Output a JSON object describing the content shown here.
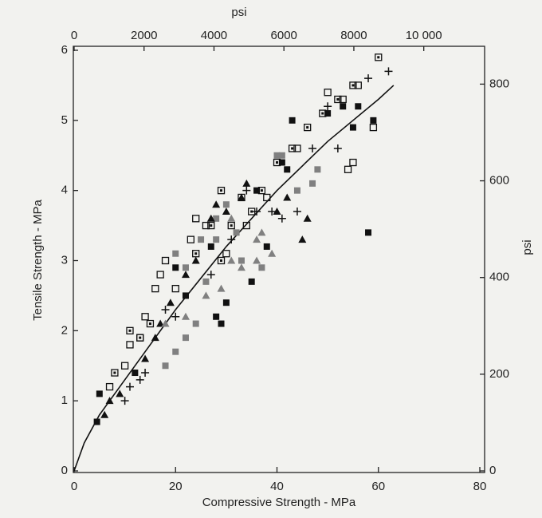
{
  "chart_data": {
    "type": "scatter",
    "xlabel": "Compressive Strength - MPa",
    "ylabel": "Tensile Strength - MPa",
    "x2label": "psi",
    "y2label": "psi",
    "xlim": [
      0,
      80
    ],
    "xticks": [
      0,
      20,
      40,
      60,
      80
    ],
    "ylim": [
      0,
      6
    ],
    "yticks": [
      0,
      1,
      2,
      3,
      4,
      5,
      6
    ],
    "x2lim": [
      0,
      11603
    ],
    "x2ticks": [
      0,
      2000,
      4000,
      6000,
      8000,
      {
        "value": 10000,
        "label": "10 000"
      }
    ],
    "y2lim": [
      0,
      870
    ],
    "y2ticks": [
      0,
      200,
      400,
      600,
      800
    ],
    "series": [
      {
        "marker": "line",
        "color": "#111111",
        "x": [
          0,
          2,
          5,
          10,
          20,
          30,
          40,
          50,
          60,
          63
        ],
        "values": [
          0,
          0.4,
          0.8,
          1.3,
          2.3,
          3.2,
          4.0,
          4.7,
          5.3,
          5.5
        ]
      },
      {
        "marker": "square",
        "color": "#111111",
        "x": [
          4.5,
          5,
          20,
          22,
          27,
          28,
          30,
          29,
          35,
          36,
          38,
          42,
          41,
          50,
          53,
          55,
          56,
          58,
          59,
          43,
          12
        ],
        "values": [
          0.7,
          1.1,
          2.9,
          2.5,
          3.2,
          2.2,
          2.4,
          2.1,
          2.7,
          4.0,
          3.2,
          4.3,
          4.4,
          5.1,
          5.2,
          4.9,
          5.2,
          3.4,
          5.0,
          5.0,
          1.4
        ]
      },
      {
        "marker": "square",
        "color": "#808080",
        "x": [
          20,
          22,
          25,
          26,
          28,
          30,
          32,
          33,
          40,
          41,
          44,
          47,
          48,
          18,
          20,
          22,
          24,
          37,
          28
        ],
        "values": [
          3.1,
          2.9,
          3.3,
          2.7,
          3.3,
          3.8,
          3.4,
          3.0,
          4.5,
          4.5,
          4.0,
          4.1,
          4.3,
          1.5,
          1.7,
          1.9,
          2.1,
          2.9,
          3.6
        ]
      },
      {
        "marker": "open-square",
        "color": "#111111",
        "x": [
          7,
          10,
          11,
          13,
          14,
          16,
          17,
          18,
          20,
          23,
          24,
          26,
          30,
          34,
          38,
          44,
          50,
          53,
          54,
          55,
          59,
          56
        ],
        "values": [
          1.2,
          1.5,
          1.8,
          1.9,
          2.2,
          2.6,
          2.8,
          3.0,
          2.6,
          3.3,
          3.6,
          3.5,
          3.1,
          3.5,
          3.9,
          4.6,
          5.4,
          5.3,
          4.3,
          4.4,
          4.9,
          5.5
        ]
      },
      {
        "marker": "dot-square",
        "color": "#111111",
        "x": [
          8,
          11,
          13,
          15,
          24,
          27,
          29,
          31,
          35,
          37,
          40,
          43,
          46,
          49,
          52,
          55,
          60,
          29,
          33
        ],
        "values": [
          1.4,
          2.0,
          1.9,
          2.1,
          3.1,
          3.5,
          3.0,
          3.5,
          3.7,
          4.0,
          4.4,
          4.6,
          4.9,
          5.1,
          5.3,
          5.5,
          5.9,
          4.0,
          3.9
        ]
      },
      {
        "marker": "triangle",
        "color": "#111111",
        "x": [
          6,
          7,
          9,
          14,
          16,
          17,
          19,
          22,
          24,
          27,
          28,
          30,
          33,
          34,
          40,
          42,
          46,
          45
        ],
        "values": [
          0.8,
          1.0,
          1.1,
          1.6,
          1.9,
          2.1,
          2.4,
          2.8,
          3.0,
          3.6,
          3.8,
          3.7,
          3.9,
          4.1,
          3.7,
          3.9,
          3.6,
          3.3
        ]
      },
      {
        "marker": "triangle",
        "color": "#808080",
        "x": [
          18,
          22,
          26,
          29,
          31,
          33,
          36,
          37,
          31,
          36,
          39
        ],
        "values": [
          2.1,
          2.2,
          2.5,
          2.6,
          3.0,
          2.9,
          3.3,
          3.4,
          3.6,
          3.0,
          3.1
        ]
      },
      {
        "marker": "plus",
        "color": "#111111",
        "x": [
          10,
          11,
          13,
          14,
          18,
          20,
          27,
          31,
          34,
          36,
          39,
          41,
          44,
          47,
          50,
          58,
          62,
          52
        ],
        "values": [
          1.0,
          1.2,
          1.3,
          1.4,
          2.3,
          2.2,
          2.8,
          3.3,
          4.0,
          3.7,
          3.7,
          3.6,
          3.7,
          4.6,
          5.2,
          5.6,
          5.7,
          4.6
        ]
      }
    ]
  }
}
